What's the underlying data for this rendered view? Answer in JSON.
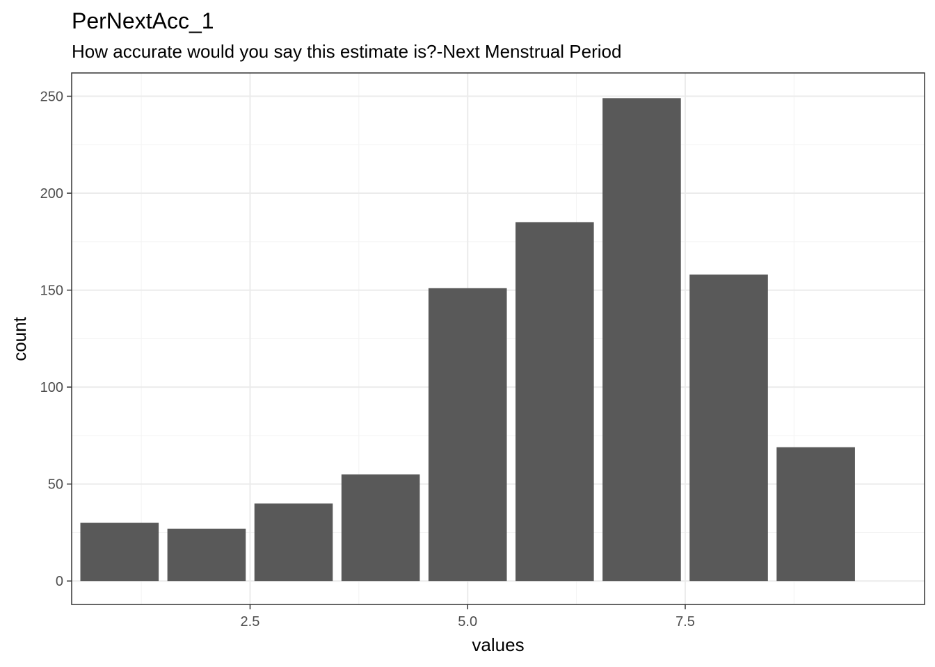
{
  "chart_data": {
    "type": "bar",
    "title": "PerNextAcc_1",
    "subtitle": "How accurate would you say this estimate is?-Next Menstrual Period",
    "xlabel": "values",
    "ylabel": "count",
    "x": [
      1,
      2,
      3,
      4,
      5,
      6,
      7,
      8,
      9
    ],
    "values": [
      30,
      27,
      40,
      55,
      151,
      185,
      249,
      158,
      69
    ],
    "xlim": [
      0.45,
      10.25
    ],
    "ylim": [
      -12.1,
      262
    ],
    "xticks": [
      2.5,
      5.0,
      7.5
    ],
    "xtick_labels": [
      "2.5",
      "5.0",
      "7.5"
    ],
    "xminor": [
      1.25,
      3.75,
      6.25,
      8.75
    ],
    "yticks": [
      0,
      50,
      100,
      150,
      200,
      250
    ],
    "ytick_labels": [
      "0",
      "50",
      "100",
      "150",
      "200",
      "250"
    ],
    "yminor": [
      25,
      75,
      125,
      175,
      225
    ],
    "bar_width": 0.9,
    "grid": true,
    "legend": "none",
    "colors": {
      "bar": "#595959",
      "grid_major": "#ebebeb",
      "grid_minor": "#f3f3f3",
      "panel_border": "#333333",
      "tick": "#333333"
    }
  }
}
